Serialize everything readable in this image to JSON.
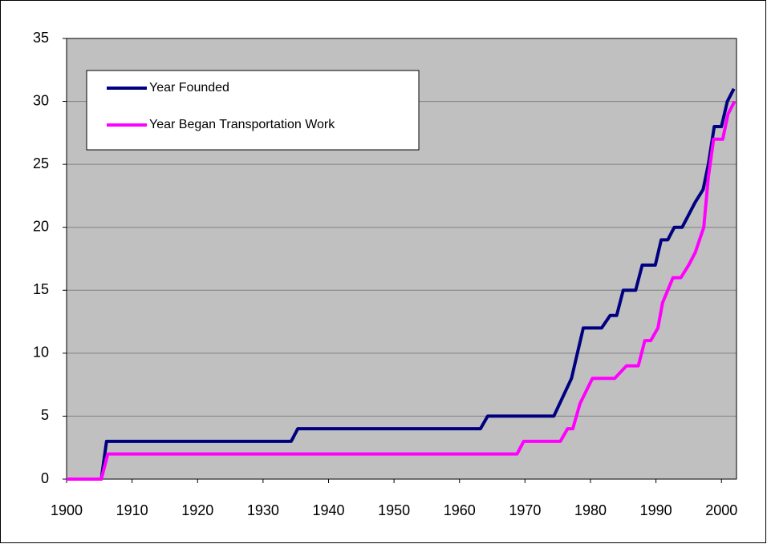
{
  "chart_data": {
    "type": "line",
    "series": [
      {
        "name": "Year Founded",
        "color": "#000080",
        "x": [
          1900,
          1905.3,
          1906.1,
          1934.3,
          1935.3,
          1963.2,
          1964.3,
          1974.4,
          1977.1,
          1978.9,
          1981.7,
          1983,
          1984,
          1985,
          1986.9,
          1987.9,
          1989.9,
          1990.8,
          1991.8,
          1992.8,
          1994,
          1996,
          1997.2,
          1998,
          1998.9,
          2000,
          2000.9,
          2001.9
        ],
        "values": [
          0,
          0,
          3,
          3,
          4,
          4,
          5,
          5,
          8,
          12,
          12,
          13,
          13,
          15,
          15,
          17,
          17,
          19,
          19,
          20,
          20,
          22,
          23,
          25,
          28,
          28,
          30,
          31
        ]
      },
      {
        "name": "Year Began Transportation Work",
        "color": "#ff00ff",
        "x": [
          1900,
          1905.3,
          1906.3,
          1968.8,
          1969.8,
          1975.4,
          1976.5,
          1977.3,
          1978.4,
          1980.3,
          1983.7,
          1985.5,
          1987.3,
          1988.3,
          1989.2,
          1990.3,
          1991,
          1992.6,
          1993.8,
          1995,
          1996,
          1997.3,
          1998,
          1998.8,
          2000.2,
          2001,
          2002
        ],
        "values": [
          0,
          0,
          2,
          2,
          3,
          3,
          4,
          4,
          6,
          8,
          8,
          9,
          9,
          11,
          11,
          12,
          14,
          16,
          16,
          17,
          18,
          20,
          24,
          27,
          27,
          29,
          30
        ]
      }
    ],
    "xlim": [
      1900,
      2002.3
    ],
    "xticks": [
      1900,
      1910,
      1920,
      1930,
      1940,
      1950,
      1960,
      1970,
      1980,
      1990,
      2000
    ],
    "ylim": [
      0,
      35
    ],
    "yticks": [
      0,
      5,
      10,
      15,
      20,
      25,
      30,
      35
    ],
    "grid": true,
    "plot_background": "#c0c0c0"
  }
}
